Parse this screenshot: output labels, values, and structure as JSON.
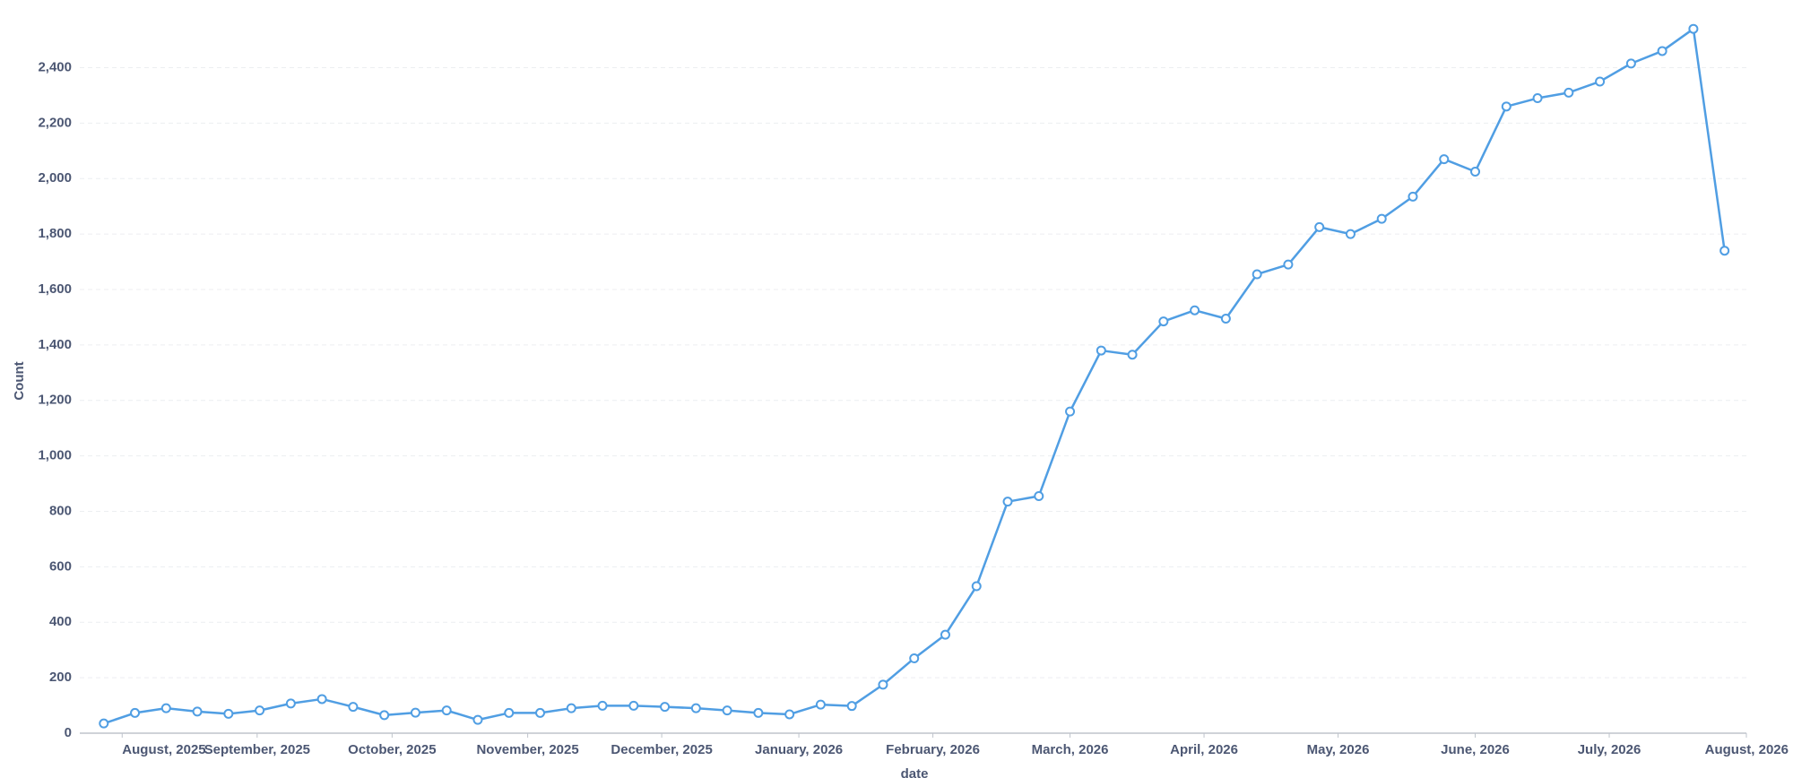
{
  "chart_data": {
    "type": "line",
    "x_label": "date",
    "y_label": "Count",
    "categories": [
      null,
      null,
      null,
      null,
      null,
      null,
      null,
      null,
      null,
      null,
      null,
      null,
      null,
      null,
      null,
      null,
      null,
      null,
      null,
      null,
      null,
      null,
      null,
      null,
      null,
      null,
      null,
      null,
      null,
      null,
      null,
      null,
      null,
      null,
      null,
      null,
      null,
      null,
      null,
      null,
      null,
      null,
      null,
      null,
      null,
      null,
      null,
      null,
      null,
      null,
      null,
      null,
      null
    ],
    "series": [
      {
        "name": "Count",
        "color": "#509ee3",
        "values": [
          35,
          73,
          90,
          78,
          70,
          82,
          107,
          123,
          95,
          65,
          74,
          82,
          48,
          73,
          73,
          90,
          99,
          99,
          95,
          90,
          82,
          73,
          68,
          103,
          98,
          175,
          270,
          355,
          530,
          835,
          855,
          1160,
          1380,
          1365,
          1485,
          1525,
          1495,
          1655,
          1690,
          1825,
          1800,
          1855,
          1935,
          2070,
          2025,
          2260,
          2290,
          2310,
          2350,
          2415,
          2460,
          2540,
          1740
        ]
      }
    ],
    "xlim": [
      -0.77,
      52.7
    ],
    "xticks": [
      {
        "value": 0.59,
        "label": "August, 2025"
      },
      {
        "value": 4.92,
        "label": "September, 2025"
      },
      {
        "value": 9.25,
        "label": "October, 2025"
      },
      {
        "value": 13.6,
        "label": "November, 2025"
      },
      {
        "value": 17.9,
        "label": "December, 2025"
      },
      {
        "value": 22.3,
        "label": "January, 2026"
      },
      {
        "value": 26.6,
        "label": "February, 2026"
      },
      {
        "value": 31.0,
        "label": "March, 2026"
      },
      {
        "value": 35.3,
        "label": "April, 2026"
      },
      {
        "value": 39.6,
        "label": "May, 2026"
      },
      {
        "value": 44.0,
        "label": "June, 2026"
      },
      {
        "value": 48.3,
        "label": "July, 2026"
      },
      {
        "value": 52.7,
        "label": "August, 2026"
      }
    ],
    "ylim": [
      0,
      2560
    ],
    "yticks": [
      0,
      {
        "value": 200,
        "label": "200"
      },
      {
        "value": 400,
        "label": "400"
      },
      {
        "value": 600,
        "label": "600"
      },
      {
        "value": 800,
        "label": "800"
      },
      {
        "value": 1000,
        "label": "1,000"
      },
      {
        "value": 1200,
        "label": "1,200"
      },
      {
        "value": 1400,
        "label": "1,400"
      },
      {
        "value": 1600,
        "label": "1,600"
      },
      {
        "value": 1800,
        "label": "1,800"
      },
      {
        "value": 2000,
        "label": "2,000"
      },
      {
        "value": 2200,
        "label": "2,200"
      },
      {
        "value": 2400,
        "label": "2,400"
      }
    ],
    "grid": true
  }
}
